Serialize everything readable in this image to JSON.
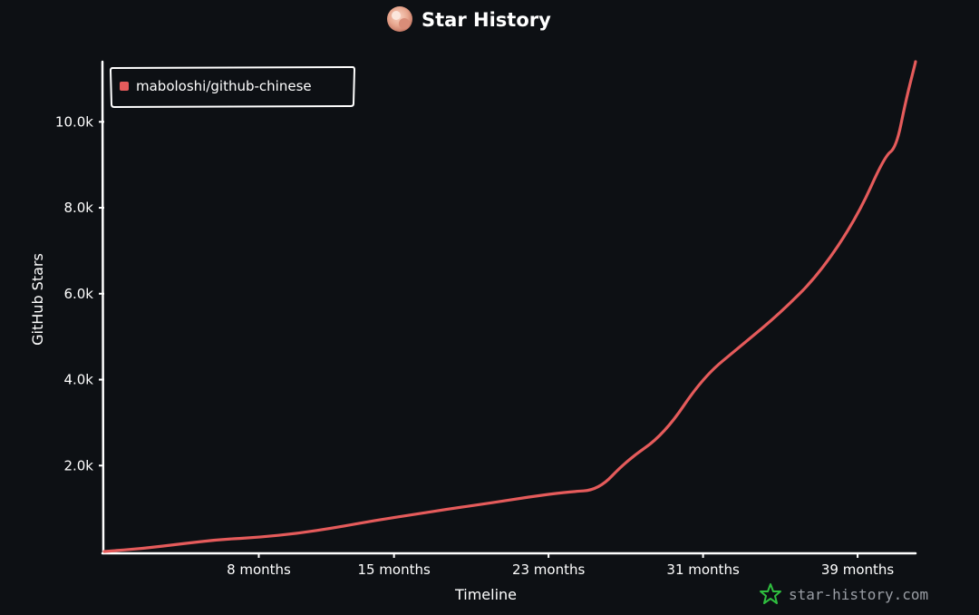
{
  "header": {
    "title": "Star History",
    "avatar_icon": "avatar-icon"
  },
  "chart_data": {
    "type": "line",
    "title": "Star History",
    "xlabel": "Timeline",
    "ylabel": "GitHub Stars",
    "x_unit": "months",
    "xlim": [
      0,
      42
    ],
    "ylim": [
      0,
      11500
    ],
    "x_ticks": [
      {
        "value": 8,
        "label": "8 months"
      },
      {
        "value": 15,
        "label": "15 months"
      },
      {
        "value": 23,
        "label": "23 months"
      },
      {
        "value": 31,
        "label": "31 months"
      },
      {
        "value": 39,
        "label": "39 months"
      }
    ],
    "y_ticks": [
      {
        "value": 2000,
        "label": "2.0k"
      },
      {
        "value": 4000,
        "label": "4.0k"
      },
      {
        "value": 6000,
        "label": "6.0k"
      },
      {
        "value": 8000,
        "label": "8.0k"
      },
      {
        "value": 10000,
        "label": "10.0k"
      }
    ],
    "grid": false,
    "legend_position": "top-left",
    "series": [
      {
        "name": "maboloshi/github-chinese",
        "color": "#e55b5b",
        "x": [
          0,
          2,
          4,
          6,
          8,
          10,
          12,
          14,
          16,
          18,
          20,
          22,
          24,
          25.6,
          27,
          29,
          31,
          33,
          35,
          37,
          39,
          40.4,
          41,
          41.5,
          42
        ],
        "y": [
          0,
          70,
          180,
          280,
          330,
          420,
          560,
          720,
          860,
          1000,
          1130,
          1270,
          1390,
          1430,
          2100,
          2730,
          4060,
          4800,
          5550,
          6450,
          7800,
          9200,
          9400,
          10500,
          11400
        ]
      }
    ]
  },
  "watermark": {
    "text": "star-history.com",
    "icon": "star-history-logo-icon",
    "color": "#2fbf3f"
  }
}
